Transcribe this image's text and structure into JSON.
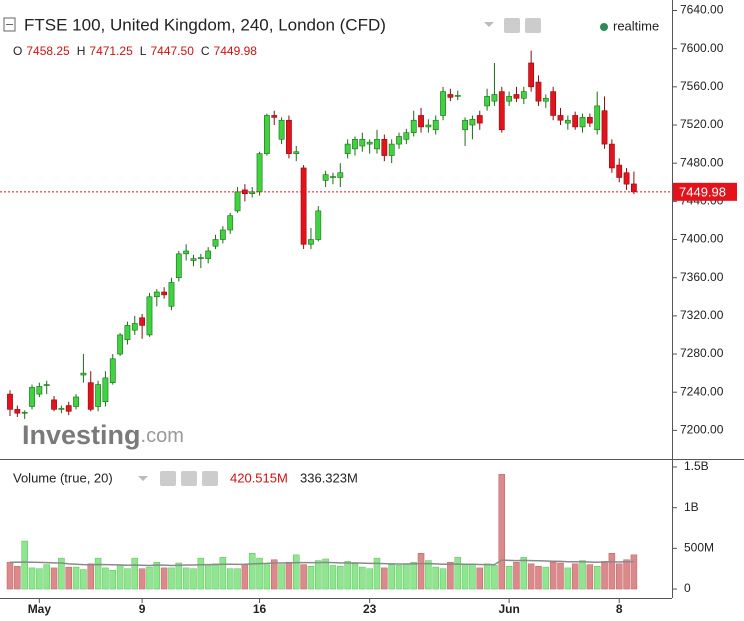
{
  "chart_data": [
    {
      "type": "candlestick",
      "title": "FTSE 100, United Kingdom, 240, London (CFD)",
      "status": "realtime",
      "ohlc": [
        {
          "key": "O",
          "text": "7458.25"
        },
        {
          "key": "H",
          "text": "7471.25"
        },
        {
          "key": "L",
          "text": "7447.50"
        },
        {
          "key": "C",
          "text": "7449.98"
        }
      ],
      "watermark": [
        "Investing",
        ".com"
      ],
      "categories": [
        null,
        null,
        null,
        null,
        "May",
        null,
        null,
        null,
        null,
        null,
        null,
        null,
        null,
        null,
        null,
        null,
        null,
        null,
        "9",
        null,
        null,
        null,
        null,
        null,
        null,
        null,
        null,
        null,
        null,
        null,
        null,
        null,
        null,
        null,
        "16",
        null,
        null,
        null,
        null,
        null,
        null,
        null,
        null,
        null,
        null,
        null,
        null,
        null,
        null,
        "23",
        null,
        null,
        null,
        null,
        null,
        null,
        null,
        null,
        null,
        null,
        null,
        null,
        null,
        null,
        null,
        null,
        null,
        null,
        "Jun",
        null,
        null,
        null,
        null,
        null,
        null,
        null,
        null,
        null,
        null,
        null,
        null,
        null,
        null,
        "8",
        null,
        null
      ],
      "open": [
        7238,
        7222,
        7218,
        7225,
        7238,
        7247,
        7232,
        7222,
        7226,
        7225,
        7258,
        7250,
        7225,
        7230,
        7250,
        7280,
        7295,
        7305,
        7318,
        7300,
        7340,
        7345,
        7330,
        7360,
        7385,
        7378,
        7380,
        7380,
        7393,
        7400,
        7410,
        7430,
        7452,
        7448,
        7450,
        7490,
        7530,
        7505,
        7525,
        7490,
        7475,
        7395,
        7400,
        7462,
        7465,
        7465,
        7490,
        7495,
        7498,
        7500,
        7495,
        7505,
        7488,
        7500,
        7505,
        7512,
        7530,
        7518,
        7515,
        7530,
        7552,
        7550,
        7515,
        7520,
        7530,
        7540,
        7545,
        7555,
        7545,
        7552,
        7548,
        7585,
        7565,
        7545,
        7555,
        7530,
        7522,
        7530,
        7518,
        7528,
        7515,
        7535,
        7500,
        7478,
        7470,
        7458.25
      ],
      "high": [
        7242,
        7226,
        7221,
        7248,
        7250,
        7252,
        7236,
        7226,
        7230,
        7238,
        7280,
        7262,
        7252,
        7262,
        7280,
        7302,
        7314,
        7320,
        7322,
        7344,
        7348,
        7350,
        7360,
        7388,
        7395,
        7384,
        7385,
        7392,
        7405,
        7414,
        7428,
        7455,
        7458,
        7455,
        7492,
        7532,
        7535,
        7528,
        7530,
        7498,
        7478,
        7412,
        7435,
        7472,
        7470,
        7480,
        7505,
        7508,
        7512,
        7505,
        7515,
        7510,
        7505,
        7512,
        7516,
        7535,
        7538,
        7526,
        7530,
        7560,
        7558,
        7556,
        7528,
        7530,
        7535,
        7558,
        7585,
        7560,
        7555,
        7560,
        7560,
        7598,
        7572,
        7552,
        7560,
        7538,
        7530,
        7534,
        7532,
        7532,
        7555,
        7550,
        7505,
        7485,
        7475,
        7471.25
      ],
      "low": [
        7215,
        7214,
        7212,
        7222,
        7235,
        7238,
        7220,
        7218,
        7216,
        7222,
        7250,
        7220,
        7220,
        7225,
        7248,
        7278,
        7290,
        7300,
        7296,
        7298,
        7330,
        7338,
        7326,
        7356,
        7378,
        7372,
        7370,
        7375,
        7390,
        7396,
        7406,
        7428,
        7440,
        7444,
        7446,
        7488,
        7520,
        7500,
        7485,
        7482,
        7390,
        7390,
        7398,
        7455,
        7458,
        7455,
        7485,
        7488,
        7492,
        7490,
        7490,
        7482,
        7480,
        7495,
        7500,
        7508,
        7512,
        7512,
        7510,
        7525,
        7545,
        7546,
        7498,
        7505,
        7515,
        7535,
        7540,
        7512,
        7540,
        7544,
        7542,
        7555,
        7540,
        7538,
        7525,
        7520,
        7515,
        7515,
        7512,
        7518,
        7510,
        7495,
        7470,
        7460,
        7452,
        7447.5
      ],
      "close": [
        7222,
        7218,
        7219,
        7245,
        7246,
        7248,
        7222,
        7223,
        7220,
        7235,
        7260,
        7222,
        7248,
        7255,
        7275,
        7300,
        7310,
        7312,
        7310,
        7340,
        7345,
        7342,
        7355,
        7385,
        7388,
        7380,
        7381,
        7388,
        7400,
        7410,
        7425,
        7450,
        7448,
        7450,
        7490,
        7530,
        7528,
        7525,
        7490,
        7492,
        7395,
        7400,
        7430,
        7468,
        7466,
        7470,
        7500,
        7505,
        7505,
        7502,
        7505,
        7488,
        7500,
        7508,
        7512,
        7525,
        7518,
        7520,
        7525,
        7555,
        7549,
        7551,
        7525,
        7526,
        7522,
        7550,
        7552,
        7515,
        7550,
        7548,
        7555,
        7560,
        7545,
        7548,
        7530,
        7525,
        7525,
        7518,
        7528,
        7522,
        7540,
        7500,
        7475,
        7465,
        7458,
        7449.98
      ],
      "last_price": 7449.98,
      "up_color": "#3fd43f",
      "down_color": "#e3121b",
      "ylim": [
        7170,
        7651
      ],
      "yticks": [
        {
          "value": 7200,
          "label": "7200.00"
        },
        {
          "value": 7240,
          "label": "7240.00"
        },
        {
          "value": 7280,
          "label": "7280.00"
        },
        {
          "value": 7320,
          "label": "7320.00"
        },
        {
          "value": 7360,
          "label": "7360.00"
        },
        {
          "value": 7400,
          "label": "7400.00"
        },
        {
          "value": 7440,
          "label": "7440.00"
        },
        {
          "value": 7480,
          "label": "7480.00"
        },
        {
          "value": 7520,
          "label": "7520.00"
        },
        {
          "value": 7560,
          "label": "7560.00"
        },
        {
          "value": 7600,
          "label": "7600.00"
        },
        {
          "value": 7640,
          "label": "7640.00"
        }
      ],
      "grid": false
    },
    {
      "type": "volume",
      "title": "Volume (true, 20)",
      "values": [
        330000000.0,
        280000000.0,
        590000000.0,
        260000000.0,
        250000000.0,
        300000000.0,
        260000000.0,
        380000000.0,
        270000000.0,
        270000000.0,
        240000000.0,
        310000000.0,
        380000000.0,
        260000000.0,
        230000000.0,
        300000000.0,
        250000000.0,
        380000000.0,
        250000000.0,
        270000000.0,
        330000000.0,
        260000000.0,
        260000000.0,
        320000000.0,
        260000000.0,
        250000000.0,
        380000000.0,
        300000000.0,
        310000000.0,
        390000000.0,
        250000000.0,
        250000000.0,
        300000000.0,
        440000000.0,
        380000000.0,
        300000000.0,
        360000000.0,
        300000000.0,
        330000000.0,
        420000000.0,
        300000000.0,
        280000000.0,
        350000000.0,
        370000000.0,
        290000000.0,
        280000000.0,
        340000000.0,
        310000000.0,
        270000000.0,
        250000000.0,
        380000000.0,
        260000000.0,
        300000000.0,
        290000000.0,
        310000000.0,
        330000000.0,
        440000000.0,
        350000000.0,
        270000000.0,
        250000000.0,
        330000000.0,
        390000000.0,
        300000000.0,
        310000000.0,
        260000000.0,
        310000000.0,
        290000000.0,
        1410000000.0,
        280000000.0,
        330000000.0,
        390000000.0,
        310000000.0,
        280000000.0,
        270000000.0,
        330000000.0,
        320000000.0,
        260000000.0,
        310000000.0,
        350000000.0,
        300000000.0,
        280000000.0,
        340000000.0,
        440000000.0,
        310000000.0,
        360000000.0,
        420515000
      ],
      "moving_average": [
        330000000.0,
        330000000.0,
        332000000.0,
        330000000.0,
        328000000.0,
        325000000.0,
        322000000.0,
        320000000.0,
        310000000.0,
        305000000.0,
        300000000.0,
        298000000.0,
        302000000.0,
        300000000.0,
        298000000.0,
        295000000.0,
        293000000.0,
        295000000.0,
        292000000.0,
        290000000.0,
        295000000.0,
        294000000.0,
        290000000.0,
        292000000.0,
        295000000.0,
        295000000.0,
        298000000.0,
        300000000.0,
        302000000.0,
        305000000.0,
        305000000.0,
        303000000.0,
        305000000.0,
        310000000.0,
        312000000.0,
        315000000.0,
        320000000.0,
        320000000.0,
        322000000.0,
        325000000.0,
        325000000.0,
        324000000.0,
        325000000.0,
        328000000.0,
        325000000.0,
        322000000.0,
        320000000.0,
        322000000.0,
        318000000.0,
        315000000.0,
        315000000.0,
        312000000.0,
        310000000.0,
        308000000.0,
        308000000.0,
        310000000.0,
        312000000.0,
        312000000.0,
        310000000.0,
        305000000.0,
        305000000.0,
        308000000.0,
        305000000.0,
        305000000.0,
        302000000.0,
        300000000.0,
        300000000.0,
        355000000.0,
        352000000.0,
        350000000.0,
        352000000.0,
        350000000.0,
        348000000.0,
        345000000.0,
        342000000.0,
        340000000.0,
        335000000.0,
        335000000.0,
        335000000.0,
        333000000.0,
        330000000.0,
        332000000.0,
        335000000.0,
        333000000.0,
        335000000.0,
        336323000
      ],
      "value_label": "420.515M",
      "ma_label": "336.323M",
      "up_color": "#8ee68e",
      "down_color": "#da8a8a",
      "ma_color": "#8a8a8a",
      "ylim": [
        -110000000,
        1586000000
      ],
      "yticks": [
        0,
        {
          "value": 500000000,
          "label": "500M"
        },
        {
          "value": 1000000000,
          "label": "1B"
        },
        {
          "value": 1500000000,
          "label": "1.5B"
        }
      ]
    }
  ]
}
